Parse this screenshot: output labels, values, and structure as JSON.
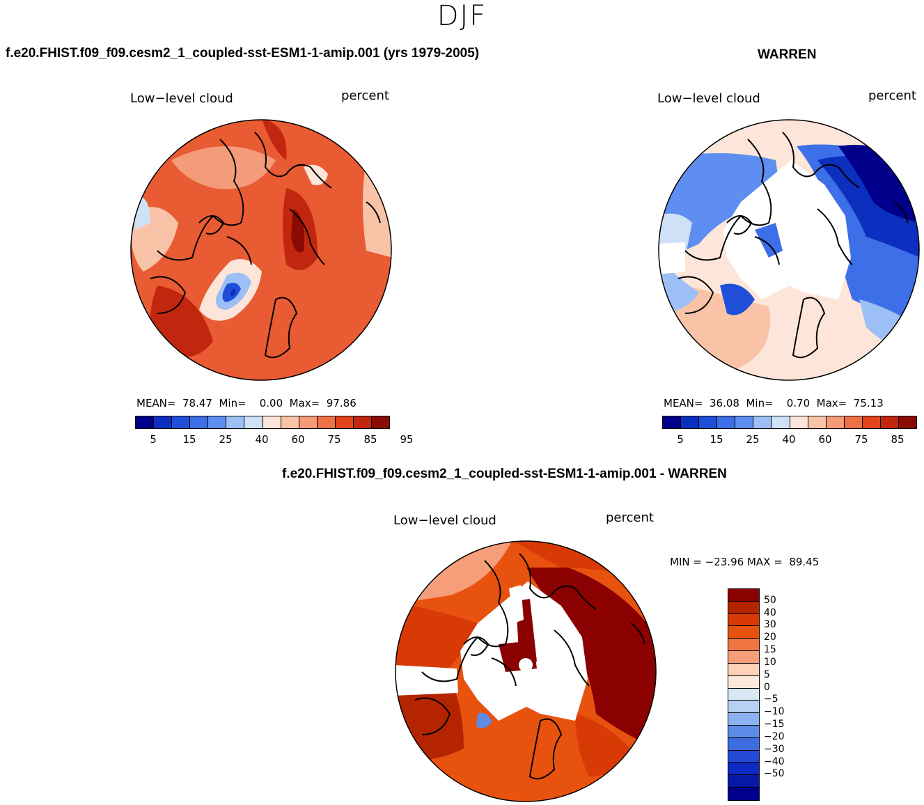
{
  "main_title": "DJF",
  "panels": [
    {
      "case_title": "f.e20.FHIST.f09_f09.cesm2_1_coupled-sst-ESM1-1-amip.001 (yrs 1979-2005)",
      "variable": "Low−level cloud",
      "units": "percent",
      "stats": "MEAN=  78.47  Min=    0.00  Max=  97.86"
    },
    {
      "case_title": "WARREN",
      "variable": "Low−level cloud",
      "units": "percent",
      "stats": "MEAN=  36.08  Min=    0.70  Max=  75.13"
    },
    {
      "case_title": "f.e20.FHIST.f09_f09.cesm2_1_coupled-sst-ESM1-1-amip.001 - WARREN",
      "variable": "Low−level cloud",
      "units": "percent",
      "stats": "MIN = −23.96 MAX =  89.45"
    }
  ],
  "abs_colorbar": {
    "colors": [
      "#00008b",
      "#0d2fbf",
      "#1f4fd8",
      "#3d6fe8",
      "#5d8ef0",
      "#9cc0f5",
      "#cfe1f7",
      "#fde6d9",
      "#f9c3a8",
      "#f49c7a",
      "#ee7046",
      "#e2431d",
      "#c1270e",
      "#8b0a03"
    ],
    "tick_labels": [
      "5",
      "15",
      "25",
      "40",
      "60",
      "75",
      "85",
      "95"
    ]
  },
  "diff_colorbar": {
    "colors": [
      "#8b0000",
      "#b52400",
      "#d83a06",
      "#e8520f",
      "#f07540",
      "#f59e79",
      "#fbd1b8",
      "#fde8dc",
      "#d9e8f7",
      "#b7d1f4",
      "#8bb2ef",
      "#5d8ce8",
      "#3c6ce0",
      "#2449d6",
      "#0f2ac4",
      "#0718a6",
      "#00008b"
    ],
    "tick_labels": [
      "50",
      "40",
      "30",
      "20",
      "15",
      "10",
      "5",
      "0",
      "−5",
      "−10",
      "−15",
      "−20",
      "−30",
      "−40",
      "−50"
    ]
  }
}
